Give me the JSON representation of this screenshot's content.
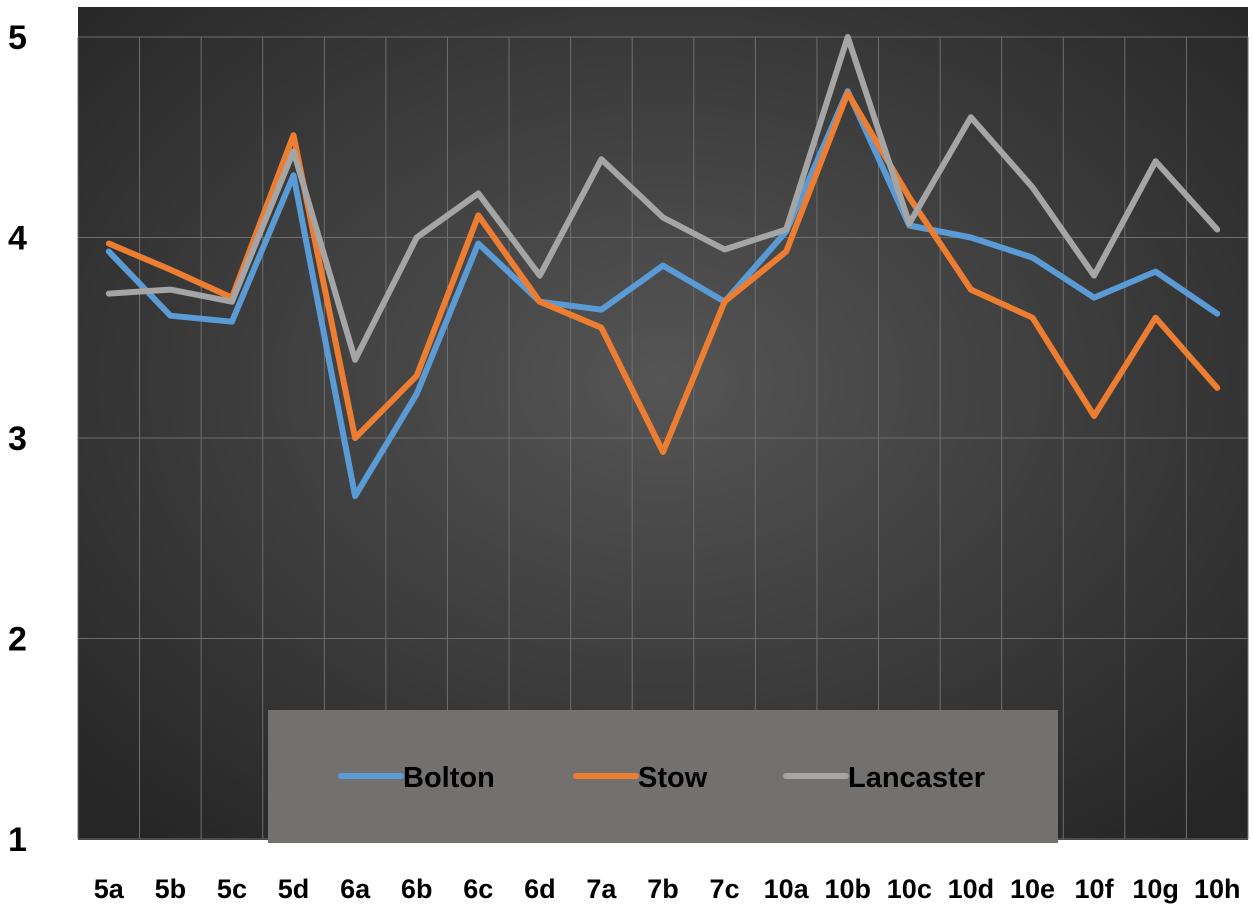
{
  "chart_data": {
    "type": "line",
    "categories": [
      "5a",
      "5b",
      "5c",
      "5d",
      "6a",
      "6b",
      "6c",
      "6d",
      "7a",
      "7b",
      "7c",
      "10a",
      "10b",
      "10c",
      "10d",
      "10e",
      "10f",
      "10g",
      "10h"
    ],
    "ylim": [
      1,
      5
    ],
    "yticks": [
      "1",
      "2",
      "3",
      "4",
      "5"
    ],
    "grid": true,
    "legend_position": "bottom-center",
    "series": [
      {
        "name": "Bolton",
        "color": "#5b9bd5",
        "values": [
          3.93,
          3.61,
          3.58,
          4.31,
          2.71,
          3.22,
          3.97,
          3.68,
          3.64,
          3.86,
          3.68,
          4.03,
          4.73,
          4.06,
          4.0,
          3.9,
          3.7,
          3.83,
          3.62
        ]
      },
      {
        "name": "Stow",
        "color": "#ed7d31",
        "values": [
          3.97,
          3.84,
          3.7,
          4.51,
          3.0,
          3.31,
          4.11,
          3.68,
          3.55,
          2.93,
          3.68,
          3.93,
          4.72,
          4.2,
          3.74,
          3.6,
          3.11,
          3.6,
          3.25
        ]
      },
      {
        "name": "Lancaster",
        "color": "#a5a5a5",
        "values": [
          3.72,
          3.74,
          3.68,
          4.43,
          3.39,
          4.0,
          4.22,
          3.81,
          4.39,
          4.1,
          3.94,
          4.04,
          5.0,
          4.07,
          4.6,
          4.25,
          3.81,
          4.38,
          4.04
        ]
      }
    ]
  }
}
